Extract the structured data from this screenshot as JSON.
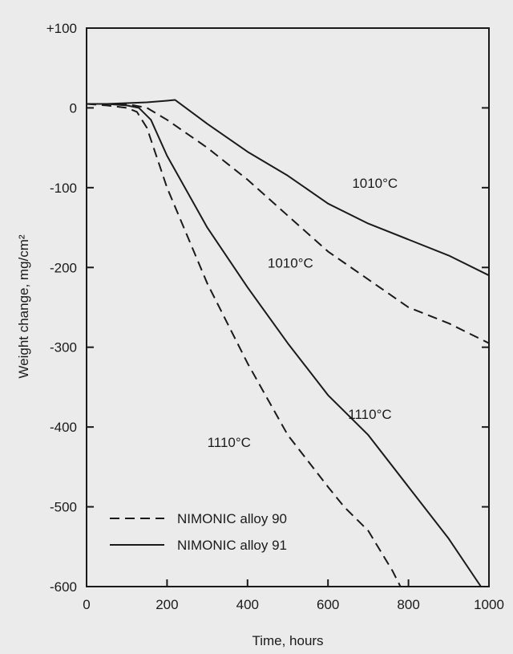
{
  "chart_data": {
    "type": "line",
    "title": "",
    "xlabel": "Time, hours",
    "ylabel": "Weight change, mg/cm²",
    "xlim": [
      0,
      1000
    ],
    "ylim": [
      -600,
      100
    ],
    "xticks": [
      0,
      200,
      400,
      600,
      800,
      1000
    ],
    "xtick_labels": [
      "0",
      "200",
      "400",
      "600",
      "800",
      "1000"
    ],
    "yticks": [
      100,
      0,
      -100,
      -200,
      -300,
      -400,
      -500,
      -600
    ],
    "ytick_labels": [
      "+100",
      "0",
      "-100",
      "-200",
      "-300",
      "-400",
      "-500",
      "-600"
    ],
    "grid": false,
    "legend_position": "bottom-left",
    "series": [
      {
        "name": "NIMONIC alloy 90",
        "temperature_label": "1010°C",
        "style": "dashed",
        "x": [
          0,
          60,
          100,
          150,
          200,
          300,
          400,
          500,
          600,
          700,
          800,
          900,
          1000
        ],
        "y": [
          5,
          5,
          5,
          0,
          -15,
          -50,
          -90,
          -135,
          -180,
          -215,
          -250,
          -270,
          -295
        ]
      },
      {
        "name": "NIMONIC alloy 91",
        "temperature_label": "1010°C",
        "style": "solid",
        "x": [
          0,
          50,
          100,
          150,
          200,
          220,
          300,
          400,
          500,
          600,
          700,
          800,
          900,
          1000
        ],
        "y": [
          5,
          5,
          6,
          7,
          9,
          10,
          -20,
          -55,
          -85,
          -120,
          -145,
          -165,
          -185,
          -210
        ]
      },
      {
        "name": "NIMONIC alloy 90",
        "temperature_label": "1110°C",
        "style": "dashed",
        "x": [
          0,
          50,
          100,
          125,
          150,
          200,
          300,
          400,
          500,
          600,
          640,
          700,
          760,
          780
        ],
        "y": [
          5,
          3,
          0,
          -5,
          -25,
          -100,
          -220,
          -320,
          -410,
          -475,
          -500,
          -530,
          -580,
          -600
        ]
      },
      {
        "name": "NIMONIC alloy 91",
        "temperature_label": "1110°C",
        "style": "solid",
        "x": [
          0,
          50,
          100,
          130,
          160,
          200,
          300,
          400,
          500,
          600,
          700,
          800,
          900,
          980
        ],
        "y": [
          5,
          5,
          3,
          0,
          -15,
          -60,
          -150,
          -225,
          -295,
          -360,
          -410,
          -475,
          -540,
          -600
        ]
      }
    ],
    "annotations": [
      {
        "text": "1010°C",
        "x": 660,
        "y": -100
      },
      {
        "text": "1010°C",
        "x": 450,
        "y": -200
      },
      {
        "text": "1110°C",
        "x": 650,
        "y": -390
      },
      {
        "text": "1110°C",
        "x": 300,
        "y": -425
      }
    ]
  }
}
